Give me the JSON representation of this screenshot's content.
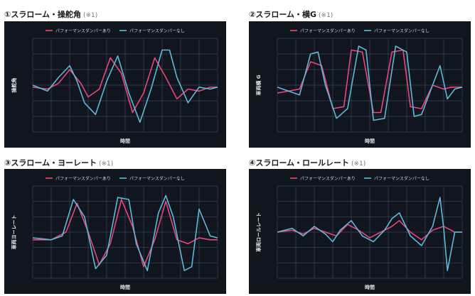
{
  "colors": {
    "with_damper": "#e8467c",
    "without_damper": "#5fb8d8",
    "panel_bg": "#10151e",
    "grid": "#3a4452"
  },
  "charts": [
    {
      "title": "①スラローム・操舵角",
      "note": "(※1)"
    },
    {
      "title": "②スラローム・横G",
      "note": "(※1)"
    },
    {
      "title": "③スラローム・ヨーレート",
      "note": "(※1)"
    },
    {
      "title": "④スラローム・ロールレート",
      "note": "(※1)"
    }
  ],
  "chart_data": [
    {
      "type": "line",
      "title": "①スラローム・操舵角",
      "xlabel": "時間",
      "ylabel": "操舵角",
      "xlim": [
        0,
        100
      ],
      "ylim": [
        -1.2,
        1.2
      ],
      "grid": true,
      "legend": "top",
      "series": [
        {
          "name": "パフォーマンスダンパーあり",
          "color": "#e8467c",
          "x": [
            0,
            8,
            14,
            20,
            26,
            30,
            36,
            42,
            48,
            54,
            60,
            66,
            72,
            78,
            84,
            90,
            96,
            100
          ],
          "y": [
            -0.05,
            -0.1,
            0.05,
            0.4,
            0.05,
            -0.3,
            -0.1,
            0.7,
            0.3,
            -0.7,
            -0.2,
            0.7,
            0.2,
            -0.35,
            -0.1,
            -0.15,
            -0.05,
            -0.05
          ]
        },
        {
          "name": "パフォーマンスダンパーなし",
          "color": "#5fb8d8",
          "x": [
            0,
            8,
            14,
            20,
            24,
            28,
            34,
            40,
            46,
            52,
            58,
            64,
            70,
            74,
            78,
            84,
            90,
            96,
            100
          ],
          "y": [
            0.0,
            -0.15,
            0.2,
            0.5,
            0.1,
            -0.45,
            -0.75,
            0.1,
            0.75,
            -0.2,
            -0.95,
            -0.1,
            0.9,
            0.9,
            0.2,
            -0.45,
            -0.05,
            -0.1,
            -0.05
          ]
        }
      ]
    },
    {
      "type": "line",
      "title": "②スラローム・横G",
      "xlabel": "時間",
      "ylabel": "車両横 G",
      "xlim": [
        0,
        100
      ],
      "ylim": [
        -1.2,
        1.2
      ],
      "grid": true,
      "legend": "top",
      "series": [
        {
          "name": "パフォーマンスダンパーあり",
          "color": "#e8467c",
          "x": [
            0,
            6,
            12,
            18,
            24,
            30,
            36,
            40,
            46,
            52,
            56,
            62,
            68,
            72,
            78,
            84,
            90,
            94,
            100
          ],
          "y": [
            -0.2,
            -0.15,
            -0.1,
            0.6,
            0.5,
            -0.6,
            -0.55,
            0.9,
            0.85,
            -0.7,
            -0.7,
            0.85,
            0.9,
            -0.55,
            -0.6,
            0.0,
            -0.1,
            -0.05,
            -0.05
          ]
        },
        {
          "name": "パフォーマンスダンパーなし",
          "color": "#5fb8d8",
          "x": [
            0,
            6,
            12,
            18,
            22,
            26,
            32,
            38,
            44,
            48,
            52,
            58,
            64,
            70,
            74,
            78,
            84,
            88,
            92,
            96,
            100
          ],
          "y": [
            -0.05,
            -0.15,
            -0.25,
            0.8,
            0.85,
            0.0,
            -0.85,
            -0.6,
            1.0,
            0.9,
            -0.9,
            -0.85,
            1.0,
            0.85,
            -0.8,
            -0.75,
            0.0,
            0.5,
            -0.35,
            -0.1,
            -0.05
          ]
        }
      ]
    },
    {
      "type": "line",
      "title": "③スラローム・ヨーレート",
      "xlabel": "時間",
      "ylabel": "車両ヨーレート",
      "xlim": [
        0,
        100
      ],
      "ylim": [
        -1.2,
        1.2
      ],
      "grid": true,
      "legend": "top",
      "series": [
        {
          "name": "パフォーマンスダンパーあり",
          "color": "#e8467c",
          "x": [
            0,
            10,
            18,
            24,
            30,
            36,
            42,
            48,
            54,
            60,
            66,
            72,
            78,
            84,
            90,
            96,
            100
          ],
          "y": [
            -0.2,
            -0.2,
            0.0,
            0.75,
            0.0,
            -0.85,
            -0.3,
            0.85,
            0.15,
            -0.9,
            -0.2,
            0.8,
            -0.2,
            -0.3,
            -0.15,
            -0.2,
            -0.2
          ]
        },
        {
          "name": "パフォーマンスダンパーなし",
          "color": "#5fb8d8",
          "x": [
            0,
            10,
            16,
            22,
            28,
            34,
            40,
            46,
            52,
            56,
            62,
            68,
            72,
            76,
            82,
            86,
            90,
            96,
            100
          ],
          "y": [
            -0.15,
            -0.2,
            -0.1,
            0.85,
            0.4,
            -0.95,
            -0.6,
            0.9,
            0.85,
            -0.3,
            -1.0,
            0.5,
            0.95,
            0.4,
            -1.0,
            -0.9,
            0.6,
            -0.1,
            -0.15
          ]
        }
      ]
    },
    {
      "type": "line",
      "title": "④スラローム・ロールレート",
      "xlabel": "時間",
      "ylabel": "車両ロールレート",
      "xlim": [
        0,
        100
      ],
      "ylim": [
        -1.2,
        1.2
      ],
      "grid": true,
      "legend": "top",
      "series": [
        {
          "name": "パフォーマンスダンパーあり",
          "color": "#e8467c",
          "x": [
            0,
            8,
            14,
            20,
            26,
            32,
            38,
            44,
            50,
            56,
            62,
            66,
            72,
            78,
            84,
            90,
            96,
            100
          ],
          "y": [
            0.0,
            0.05,
            -0.05,
            0.1,
            0.0,
            -0.1,
            0.2,
            0.05,
            -0.15,
            0.0,
            0.15,
            0.3,
            0.0,
            -0.2,
            0.05,
            0.15,
            0.0,
            0.0
          ]
        },
        {
          "name": "パフォーマンスダンパーなし",
          "color": "#5fb8d8",
          "x": [
            0,
            8,
            14,
            20,
            26,
            30,
            34,
            40,
            46,
            52,
            58,
            62,
            66,
            72,
            78,
            84,
            88,
            90,
            92,
            96,
            100
          ],
          "y": [
            0.0,
            0.1,
            -0.1,
            0.15,
            -0.05,
            -0.25,
            0.05,
            0.3,
            -0.1,
            -0.25,
            0.05,
            0.35,
            0.5,
            -0.1,
            -0.35,
            0.15,
            0.9,
            0.1,
            -1.0,
            0.0,
            0.0
          ]
        }
      ]
    }
  ]
}
